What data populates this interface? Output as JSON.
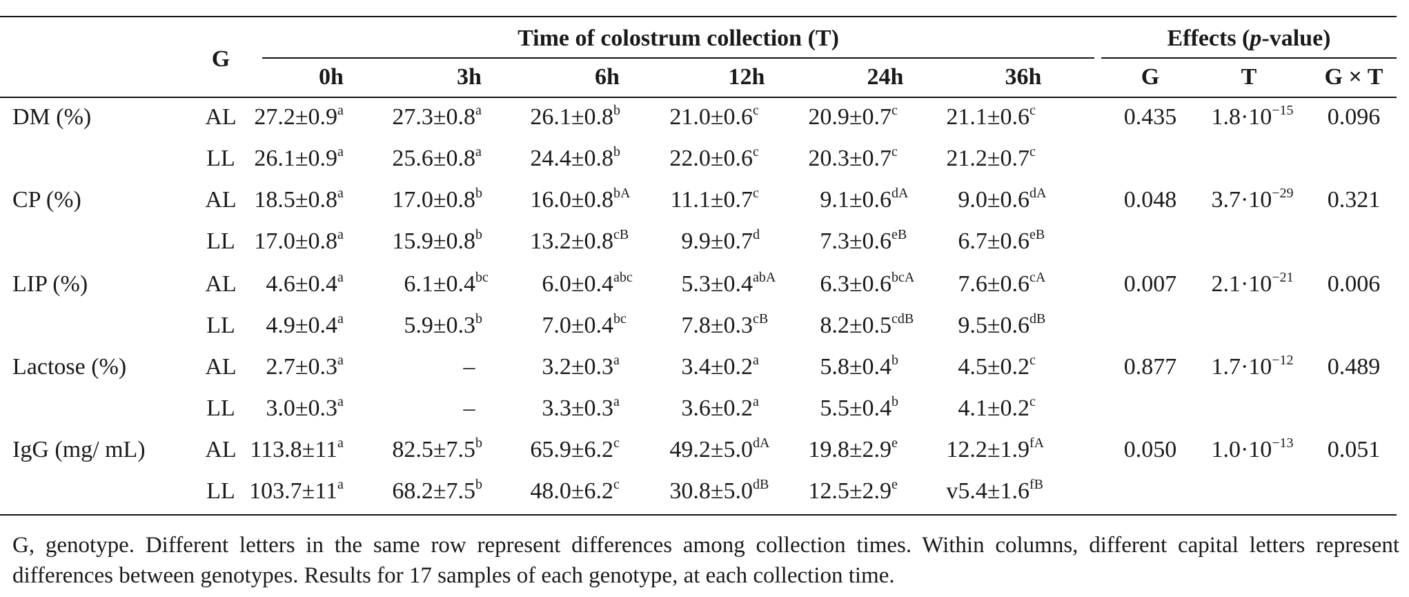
{
  "header": {
    "g_label": "G",
    "time_group_label": "Time of colostrum collection (T)",
    "effects_group_label_prefix": "Effects (",
    "effects_group_label_p": "p",
    "effects_group_label_suffix": "-value)",
    "time_columns": [
      "0h",
      "3h",
      "6h",
      "12h",
      "24h",
      "36h"
    ],
    "effect_columns": [
      "G",
      "T",
      "G × T"
    ]
  },
  "rows": [
    {
      "variable": "DM (%)",
      "genotype": "AL",
      "values": [
        [
          "27.2±0.9",
          "a"
        ],
        [
          "27.3±0.8",
          "a"
        ],
        [
          "26.1±0.8",
          "b"
        ],
        [
          "21.0±0.6",
          "c"
        ],
        [
          "20.9±0.7",
          "c"
        ],
        [
          "21.1±0.6",
          "c"
        ]
      ],
      "effects": {
        "G": "0.435",
        "T_base": "1.8·10",
        "T_exp": "−15",
        "GxT": "0.096"
      }
    },
    {
      "variable": "",
      "genotype": "LL",
      "values": [
        [
          "26.1±0.9",
          "a"
        ],
        [
          "25.6±0.8",
          "a"
        ],
        [
          "24.4±0.8",
          "b"
        ],
        [
          "22.0±0.6",
          "c"
        ],
        [
          "20.3±0.7",
          "c"
        ],
        [
          "21.2±0.7",
          "c"
        ]
      ]
    },
    {
      "variable": "CP (%)",
      "genotype": "AL",
      "values": [
        [
          "18.5±0.8",
          "a"
        ],
        [
          "17.0±0.8",
          "b"
        ],
        [
          "16.0±0.8",
          "bA"
        ],
        [
          "11.1±0.7",
          "c"
        ],
        [
          "9.1±0.6",
          "dA"
        ],
        [
          "9.0±0.6",
          "dA"
        ]
      ],
      "effects": {
        "G": "0.048",
        "T_base": "3.7·10",
        "T_exp": "−29",
        "GxT": "0.321"
      }
    },
    {
      "variable": "",
      "genotype": "LL",
      "values": [
        [
          "17.0±0.8",
          "a"
        ],
        [
          "15.9±0.8",
          "b"
        ],
        [
          "13.2±0.8",
          "cB"
        ],
        [
          "9.9±0.7",
          "d"
        ],
        [
          "7.3±0.6",
          "eB"
        ],
        [
          "6.7±0.6",
          "eB"
        ]
      ]
    },
    {
      "variable": "LIP (%)",
      "genotype": "AL",
      "values": [
        [
          "4.6±0.4",
          "a"
        ],
        [
          "6.1±0.4",
          "bc"
        ],
        [
          "6.0±0.4",
          "abc"
        ],
        [
          "5.3±0.4",
          "abA"
        ],
        [
          "6.3±0.6",
          "bcA"
        ],
        [
          "7.6±0.6",
          "cA"
        ]
      ],
      "effects": {
        "G": "0.007",
        "T_base": "2.1·10",
        "T_exp": "−21",
        "GxT": "0.006"
      }
    },
    {
      "variable": "",
      "genotype": "LL",
      "values": [
        [
          "4.9±0.4",
          "a"
        ],
        [
          "5.9±0.3",
          "b"
        ],
        [
          "7.0±0.4",
          "bc"
        ],
        [
          "7.8±0.3",
          "cB"
        ],
        [
          "8.2±0.5",
          "cdB"
        ],
        [
          "9.5±0.6",
          "dB"
        ]
      ]
    },
    {
      "variable": "Lactose (%)",
      "genotype": "AL",
      "values": [
        [
          "2.7±0.3",
          "a"
        ],
        [
          "–",
          ""
        ],
        [
          "3.2±0.3",
          "a"
        ],
        [
          "3.4±0.2",
          "a"
        ],
        [
          "5.8±0.4",
          "b"
        ],
        [
          "4.5±0.2",
          "c"
        ]
      ],
      "effects": {
        "G": "0.877",
        "T_base": "1.7·10",
        "T_exp": "−12",
        "GxT": "0.489"
      }
    },
    {
      "variable": "",
      "genotype": "LL",
      "values": [
        [
          "3.0±0.3",
          "a"
        ],
        [
          "–",
          ""
        ],
        [
          "3.3±0.3",
          "a"
        ],
        [
          "3.6±0.2",
          "a"
        ],
        [
          "5.5±0.4",
          "b"
        ],
        [
          "4.1±0.2",
          "c"
        ]
      ]
    },
    {
      "variable": "IgG (mg/ mL)",
      "genotype": "AL",
      "values": [
        [
          "113.8±11",
          "a"
        ],
        [
          "82.5±7.5",
          "b"
        ],
        [
          "65.9±6.2",
          "c"
        ],
        [
          "49.2±5.0",
          "dA"
        ],
        [
          "19.8±2.9",
          "e"
        ],
        [
          "12.2±1.9",
          "fA"
        ]
      ],
      "effects": {
        "G": "0.050",
        "T_base": "1.0·10",
        "T_exp": "−13",
        "GxT": "0.051"
      }
    },
    {
      "variable": "",
      "genotype": "LL",
      "values": [
        [
          "103.7±11",
          "a"
        ],
        [
          "68.2±7.5",
          "b"
        ],
        [
          "48.0±6.2",
          "c"
        ],
        [
          "30.8±5.0",
          "dB"
        ],
        [
          "12.5±2.9",
          "e"
        ],
        [
          "v5.4±1.6",
          "fB"
        ]
      ]
    }
  ],
  "footnote": "G, genotype. Different letters in the same row represent differences among collection times. Within columns, different capital letters represent differences between genotypes. Results for 17 samples of each genotype, at each collection time."
}
